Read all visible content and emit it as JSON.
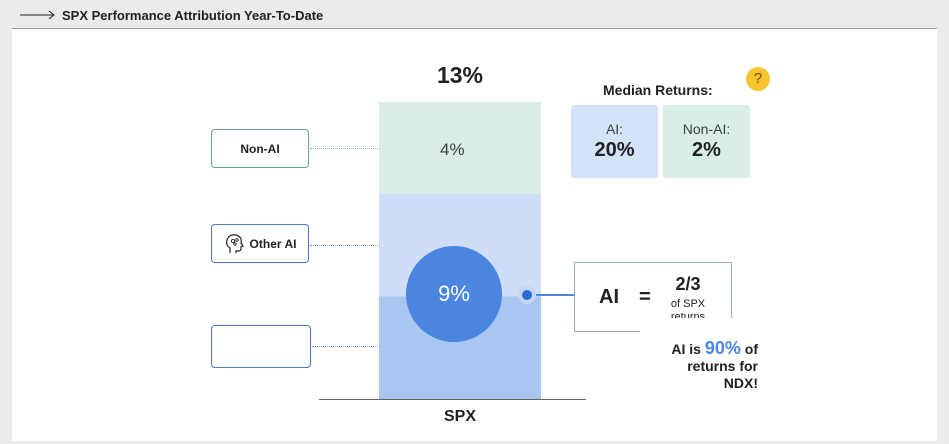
{
  "header": {
    "title": "SPX Performance Attribution Year-To-Date"
  },
  "chart_data": {
    "type": "bar",
    "categories": [
      "SPX"
    ],
    "total_label": "13%",
    "series": [
      {
        "name": "Non-AI",
        "value": 4,
        "label": "4%",
        "color": "#d9eee6"
      },
      {
        "name": "Other AI",
        "value": 4.5,
        "color": "#cfddf7"
      },
      {
        "name": "",
        "value": 4.5,
        "color": "#a9c6f0"
      }
    ],
    "ai_share_label": "9%",
    "ylim": [
      0,
      13
    ]
  },
  "labels": {
    "non_ai": "Non-AI",
    "other_ai": "Other AI",
    "blank": ""
  },
  "ai_callout": {
    "word": "AI",
    "equals": "=",
    "fraction": "2/3",
    "sub_line1": "of SPX",
    "sub_line2": "returns"
  },
  "ai_share_note": {
    "prefix": "AI is",
    "value": "90%",
    "suffix": "of",
    "line2": "returns for",
    "line3": "NDX!"
  },
  "median": {
    "title": "Median Returns:",
    "ai_label": "AI:",
    "ai_value": "20%",
    "ai_color": "#d5e3f8",
    "nonai_label": "Non-AI:",
    "nonai_value": "2%",
    "nonai_color": "#d9eee6"
  },
  "icons": {
    "brain": "brain-head-icon",
    "thinking": "thinking-face-emoji"
  }
}
